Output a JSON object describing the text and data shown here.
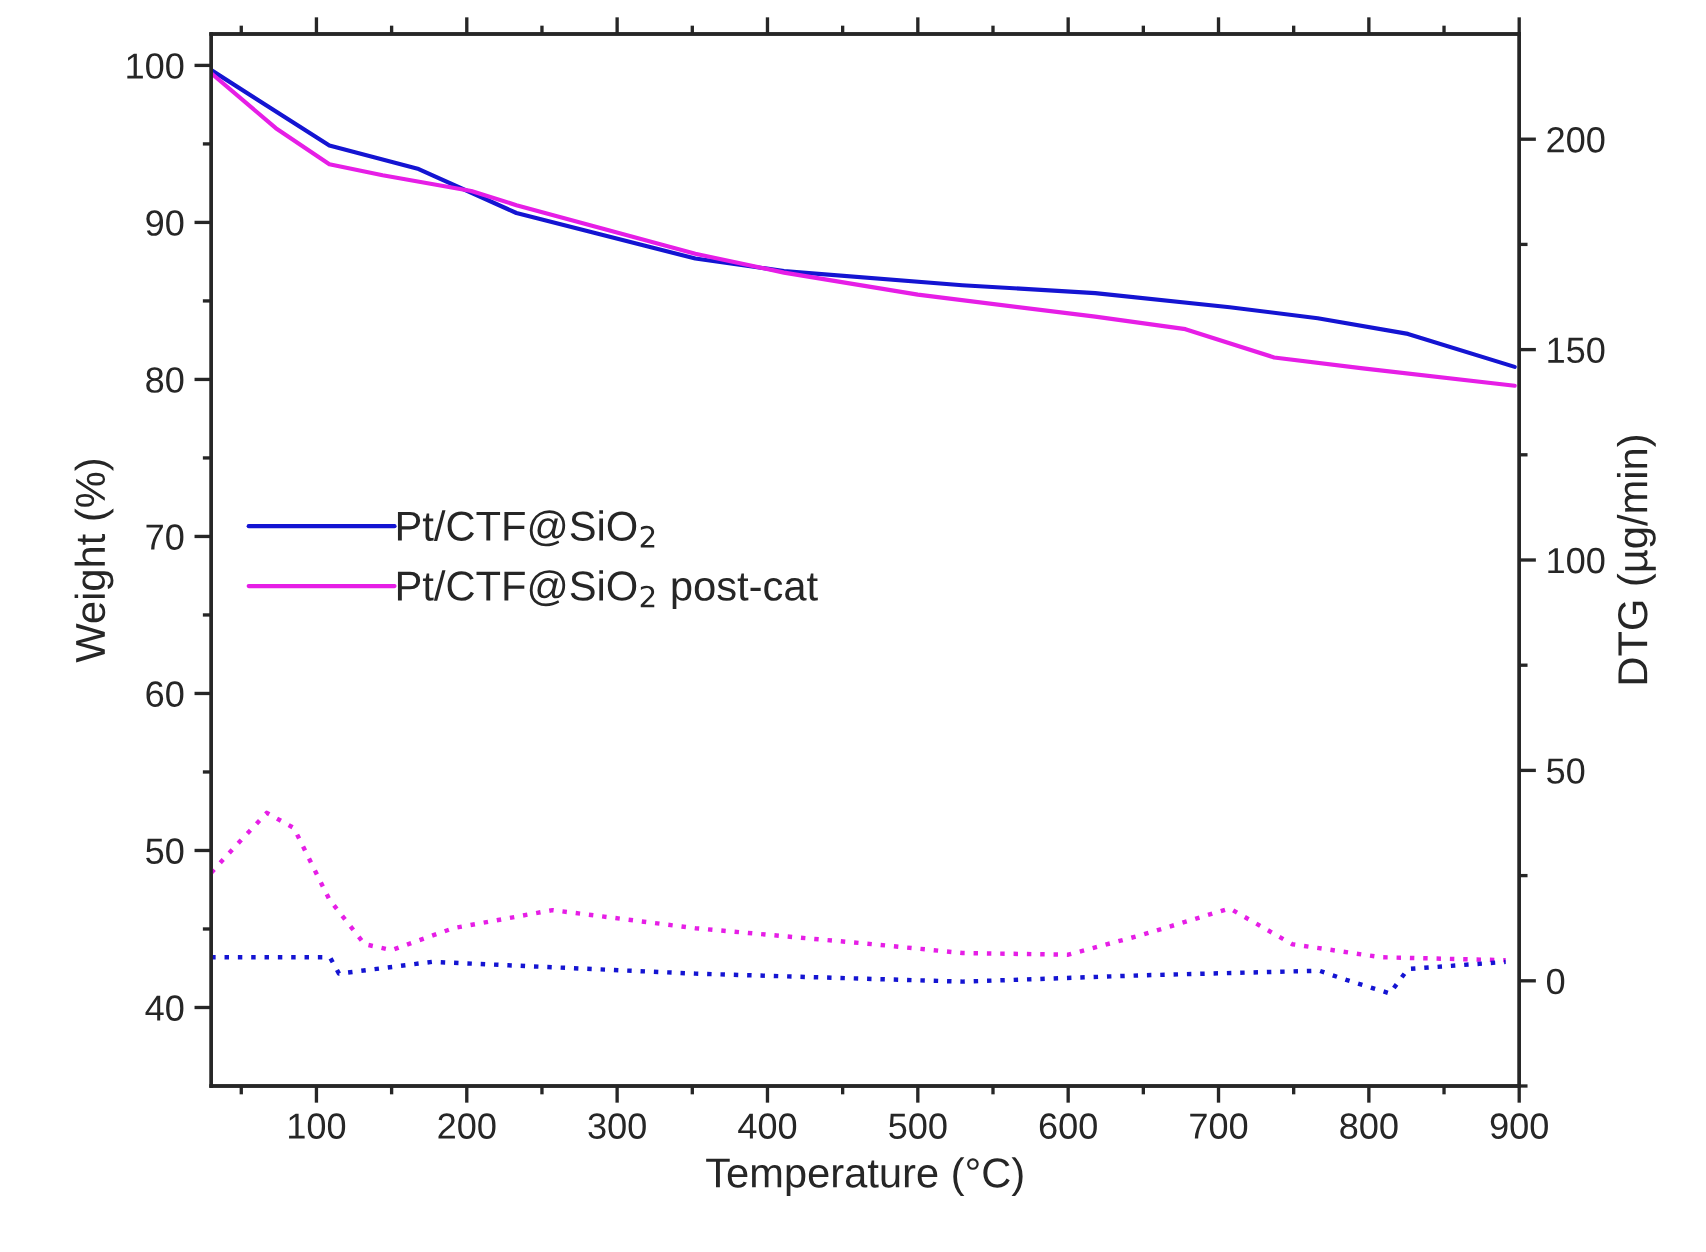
{
  "chart_data": {
    "type": "line",
    "xlabel": "Temperature (°C)",
    "ylabel": "Weight (%)",
    "y2label": "DTG (µg/min)",
    "xlim": [
      30,
      900
    ],
    "xticks": [
      {
        "value": 50,
        "label": null
      },
      100,
      {
        "value": 150,
        "label": null
      },
      200,
      {
        "value": 250,
        "label": null
      },
      300,
      {
        "value": 350,
        "label": null
      },
      400,
      {
        "value": 450,
        "label": null
      },
      500,
      {
        "value": 550,
        "label": null
      },
      600,
      {
        "value": 650,
        "label": null
      },
      700,
      {
        "value": 750,
        "label": null
      },
      800,
      {
        "value": 850,
        "label": null
      },
      900
    ],
    "ylim": [
      35,
      102
    ],
    "yticks": [
      40,
      {
        "value": 45,
        "label": null
      },
      50,
      {
        "value": 55,
        "label": null
      },
      60,
      {
        "value": 65,
        "label": null
      },
      70,
      {
        "value": 75,
        "label": null
      },
      80,
      {
        "value": 85,
        "label": null
      },
      90,
      {
        "value": 95,
        "label": null
      },
      100
    ],
    "y2lim": [
      -25,
      225
    ],
    "y2ticks": [
      {
        "value": -25,
        "label": null
      },
      0,
      {
        "value": 25,
        "label": null
      },
      50,
      {
        "value": 75,
        "label": null
      },
      100,
      {
        "value": 125,
        "label": null
      },
      150,
      {
        "value": 175,
        "label": null
      },
      200
    ],
    "legend": "center left",
    "grid": false,
    "series": [
      {
        "name": "Pt/CTF@SiO$_{2}$",
        "color": "#1414d2",
        "line_style": "solid",
        "x": [
          30,
          108.6,
          168,
          233,
          352,
          411,
          529.6,
          618,
          707.5,
          766,
          826,
          897
        ],
        "values": [
          99.7,
          94.9,
          93.4,
          90.6,
          87.7,
          86.9,
          86.0,
          85.5,
          84.6,
          83.9,
          82.9,
          80.8
        ]
      },
      {
        "name": "Pt/CTF@SiO$_{2}$ post-cat",
        "color": "#e61ee6",
        "line_style": "solid",
        "x": [
          30,
          73,
          108.6,
          144,
          203,
          233,
          352,
          411,
          500,
          618,
          678,
          737,
          796,
          897
        ],
        "values": [
          99.5,
          96.0,
          93.7,
          93.0,
          92.0,
          91.1,
          88.0,
          86.8,
          85.4,
          84.0,
          83.2,
          81.4,
          80.7,
          79.6
        ]
      },
      {
        "color": "#e61ee6",
        "line_style": "dotted",
        "axis": "y2",
        "x": [
          30,
          49,
          67,
          85,
          108.6,
          132,
          150,
          191,
          257,
          352,
          470,
          529.6,
          600,
          649,
          707.5,
          749,
          808,
          891
        ],
        "values": [
          25.7,
          33.1,
          39.9,
          36.3,
          19.3,
          8.7,
          7.3,
          12.5,
          16.8,
          12.5,
          8.7,
          6.6,
          6.2,
          10.9,
          17.2,
          8.7,
          5.6,
          4.9
        ]
      },
      {
        "color": "#1414d2",
        "line_style": "dotted",
        "axis": "y2",
        "x": [
          30,
          109,
          115,
          177,
          352,
          530,
          649,
          767,
          785,
          814,
          826,
          891
        ],
        "values": [
          5.6,
          5.6,
          1.7,
          4.5,
          1.7,
          -0.2,
          1.3,
          2.4,
          0.2,
          -3.0,
          2.8,
          4.5
        ]
      }
    ]
  }
}
